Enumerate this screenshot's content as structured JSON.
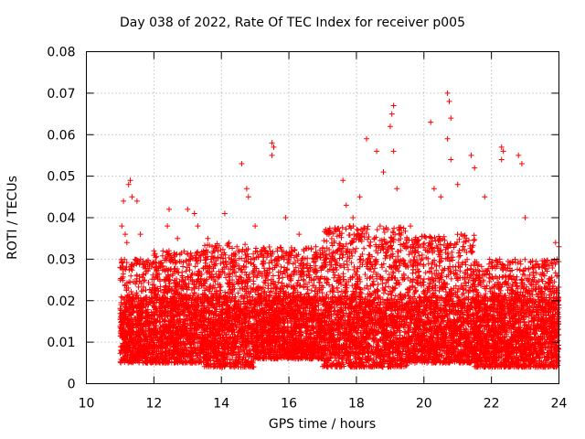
{
  "chart_data": {
    "type": "scatter",
    "title": "Day 038 of 2022, Rate Of TEC Index for receiver p005",
    "xlabel": "GPS time / hours",
    "ylabel": "ROTI / TECUs",
    "xlim": [
      10,
      24
    ],
    "ylim": [
      0,
      0.08
    ],
    "xticks": [
      10,
      12,
      14,
      16,
      18,
      20,
      22,
      24
    ],
    "xtick_labels": [
      "10",
      "12",
      "14",
      "16",
      "18",
      "20",
      "22",
      "24"
    ],
    "yticks": [
      0,
      0.01,
      0.02,
      0.03,
      0.04,
      0.05,
      0.06,
      0.07,
      0.08
    ],
    "ytick_labels": [
      "0",
      "0.01",
      "0.02",
      "0.03",
      "0.04",
      "0.05",
      "0.06",
      "0.07",
      "0.08"
    ],
    "grid": true,
    "marker": "+",
    "marker_color": "#ff0000",
    "data_range": {
      "x": [
        11.0,
        24.0
      ],
      "y": [
        0.003,
        0.07
      ]
    },
    "series": [
      {
        "name": "ROTI",
        "points": [
          [
            11.0,
            0.028
          ],
          [
            11.05,
            0.038
          ],
          [
            11.1,
            0.044
          ],
          [
            11.15,
            0.036
          ],
          [
            11.2,
            0.034
          ],
          [
            11.25,
            0.048
          ],
          [
            11.3,
            0.049
          ],
          [
            11.35,
            0.045
          ],
          [
            11.5,
            0.044
          ],
          [
            11.6,
            0.036
          ],
          [
            12.0,
            0.032
          ],
          [
            12.4,
            0.038
          ],
          [
            12.45,
            0.042
          ],
          [
            12.7,
            0.035
          ],
          [
            13.0,
            0.042
          ],
          [
            13.2,
            0.041
          ],
          [
            13.3,
            0.038
          ],
          [
            13.6,
            0.035
          ],
          [
            14.1,
            0.041
          ],
          [
            14.3,
            0.03
          ],
          [
            14.6,
            0.053
          ],
          [
            14.75,
            0.047
          ],
          [
            14.8,
            0.045
          ],
          [
            15.0,
            0.038
          ],
          [
            15.5,
            0.058
          ],
          [
            15.55,
            0.057
          ],
          [
            15.5,
            0.055
          ],
          [
            15.9,
            0.04
          ],
          [
            16.3,
            0.036
          ],
          [
            16.8,
            0.033
          ],
          [
            17.4,
            0.037
          ],
          [
            17.6,
            0.049
          ],
          [
            17.7,
            0.043
          ],
          [
            17.9,
            0.04
          ],
          [
            18.1,
            0.045
          ],
          [
            18.3,
            0.059
          ],
          [
            18.6,
            0.056
          ],
          [
            18.8,
            0.051
          ],
          [
            19.0,
            0.062
          ],
          [
            19.05,
            0.065
          ],
          [
            19.1,
            0.067
          ],
          [
            19.1,
            0.056
          ],
          [
            19.2,
            0.047
          ],
          [
            19.6,
            0.038
          ],
          [
            20.2,
            0.063
          ],
          [
            20.3,
            0.047
          ],
          [
            20.5,
            0.045
          ],
          [
            20.7,
            0.07
          ],
          [
            20.75,
            0.068
          ],
          [
            20.8,
            0.064
          ],
          [
            20.7,
            0.059
          ],
          [
            20.8,
            0.054
          ],
          [
            21.0,
            0.048
          ],
          [
            21.1,
            0.036
          ],
          [
            21.4,
            0.055
          ],
          [
            21.5,
            0.052
          ],
          [
            21.8,
            0.045
          ],
          [
            22.3,
            0.057
          ],
          [
            22.35,
            0.056
          ],
          [
            22.3,
            0.054
          ],
          [
            22.8,
            0.055
          ],
          [
            22.9,
            0.053
          ],
          [
            23.0,
            0.04
          ],
          [
            23.5,
            0.028
          ],
          [
            23.9,
            0.034
          ],
          [
            24.0,
            0.033
          ]
        ],
        "bands": [
          {
            "x": [
              11.0,
              12.0
            ],
            "y": [
              0.005,
              0.03
            ]
          },
          {
            "x": [
              12.0,
              13.5
            ],
            "y": [
              0.005,
              0.032
            ]
          },
          {
            "x": [
              13.5,
              15.0
            ],
            "y": [
              0.004,
              0.034
            ]
          },
          {
            "x": [
              15.0,
              17.0
            ],
            "y": [
              0.006,
              0.033
            ]
          },
          {
            "x": [
              17.0,
              19.5
            ],
            "y": [
              0.004,
              0.038
            ]
          },
          {
            "x": [
              19.5,
              21.5
            ],
            "y": [
              0.005,
              0.036
            ]
          },
          {
            "x": [
              21.5,
              24.0
            ],
            "y": [
              0.004,
              0.03
            ]
          }
        ]
      }
    ]
  }
}
